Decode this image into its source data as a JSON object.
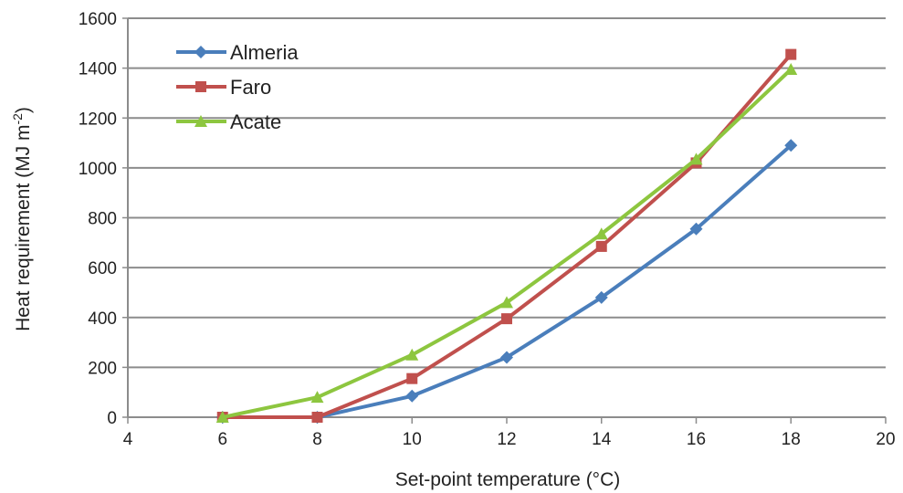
{
  "chart_data": {
    "type": "line",
    "xlabel": "Set-point temperature (°C)",
    "ylabel_main": "Heat requirement (MJ m",
    "ylabel_sup": "-2",
    "ylabel_close": ")",
    "xlim": [
      4,
      20
    ],
    "ylim": [
      0,
      1600
    ],
    "xticks": [
      4,
      6,
      8,
      10,
      12,
      14,
      16,
      18,
      20
    ],
    "yticks": [
      0,
      200,
      400,
      600,
      800,
      1000,
      1200,
      1400,
      1600
    ],
    "grid": "horizontal",
    "legend_position": "top-left",
    "x": [
      6,
      8,
      10,
      12,
      14,
      16,
      18
    ],
    "series": [
      {
        "name": "Almeria",
        "color": "#4a7ebb",
        "marker": "diamond",
        "values": [
          0,
          0,
          85,
          240,
          480,
          755,
          1090
        ]
      },
      {
        "name": "Faro",
        "color": "#c0504d",
        "marker": "square",
        "values": [
          0,
          0,
          155,
          395,
          685,
          1020,
          1455
        ]
      },
      {
        "name": "Acate",
        "color": "#8dc63f",
        "marker": "triangle",
        "values": [
          0,
          80,
          250,
          460,
          735,
          1035,
          1395
        ]
      }
    ]
  }
}
